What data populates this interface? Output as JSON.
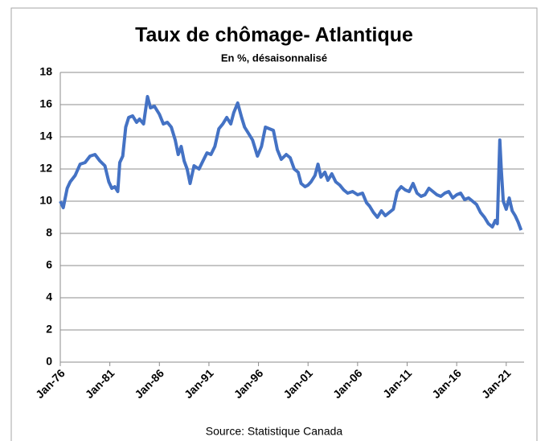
{
  "chart_data": {
    "type": "line",
    "title": "Taux de chômage- Atlantique",
    "subtitle": "En %, désaisonnalisé",
    "source": "Source: Statistique Canada",
    "color": "#4472c4",
    "grid": true,
    "xlim": [
      1976,
      2022.8
    ],
    "xticks": [
      {
        "value": 1976,
        "label": "Jan-76"
      },
      {
        "value": 1981,
        "label": "Jan-81"
      },
      {
        "value": 1986,
        "label": "Jan-86"
      },
      {
        "value": 1991,
        "label": "Jan-91"
      },
      {
        "value": 1996,
        "label": "Jan-96"
      },
      {
        "value": 2001,
        "label": "Jan-01"
      },
      {
        "value": 2006,
        "label": "Jan-06"
      },
      {
        "value": 2011,
        "label": "Jan-11"
      },
      {
        "value": 2016,
        "label": "Jan-16"
      },
      {
        "value": 2021,
        "label": "Jan-21"
      }
    ],
    "ylim": [
      0,
      18
    ],
    "yticks": [
      0,
      2,
      4,
      6,
      8,
      10,
      12,
      14,
      16,
      18
    ],
    "x": [
      1976.0,
      1976.3,
      1976.7,
      1977.0,
      1977.5,
      1978.0,
      1978.5,
      1979.0,
      1979.5,
      1980.0,
      1980.5,
      1980.9,
      1981.2,
      1981.5,
      1981.8,
      1982.0,
      1982.3,
      1982.6,
      1982.9,
      1983.3,
      1983.7,
      1984.0,
      1984.4,
      1984.8,
      1985.1,
      1985.5,
      1986.0,
      1986.4,
      1986.8,
      1987.2,
      1987.6,
      1987.9,
      1988.2,
      1988.5,
      1988.8,
      1989.1,
      1989.5,
      1990.0,
      1990.4,
      1990.8,
      1991.2,
      1991.6,
      1992.0,
      1992.4,
      1992.8,
      1993.2,
      1993.5,
      1993.9,
      1994.3,
      1994.6,
      1995.0,
      1995.4,
      1995.9,
      1996.3,
      1996.7,
      1997.1,
      1997.5,
      1997.9,
      1998.3,
      1998.8,
      1999.2,
      1999.6,
      2000.0,
      2000.3,
      2000.7,
      2001.0,
      2001.3,
      2001.7,
      2002.0,
      2002.3,
      2002.7,
      2003.0,
      2003.4,
      2003.8,
      2004.2,
      2004.6,
      2005.0,
      2005.5,
      2006.0,
      2006.5,
      2006.9,
      2007.2,
      2007.6,
      2008.0,
      2008.4,
      2008.8,
      2009.2,
      2009.6,
      2010.0,
      2010.4,
      2010.8,
      2011.2,
      2011.6,
      2012.0,
      2012.4,
      2012.8,
      2013.2,
      2013.6,
      2014.0,
      2014.4,
      2014.8,
      2015.2,
      2015.6,
      2016.0,
      2016.4,
      2016.8,
      2017.2,
      2017.6,
      2018.0,
      2018.4,
      2018.8,
      2019.2,
      2019.6,
      2019.9,
      2020.1,
      2020.35,
      2020.5,
      2020.7,
      2021.0,
      2021.3,
      2021.6,
      2021.9,
      2022.2,
      2022.5
    ],
    "values": [
      10.0,
      9.6,
      10.8,
      11.2,
      11.6,
      12.3,
      12.4,
      12.8,
      12.9,
      12.5,
      12.2,
      11.2,
      10.8,
      10.9,
      10.6,
      12.4,
      12.8,
      14.6,
      15.2,
      15.3,
      14.9,
      15.1,
      14.8,
      16.5,
      15.8,
      15.9,
      15.4,
      14.8,
      14.9,
      14.6,
      13.8,
      12.9,
      13.4,
      12.5,
      12.0,
      11.1,
      12.2,
      12.0,
      12.5,
      13.0,
      12.9,
      13.4,
      14.5,
      14.8,
      15.2,
      14.8,
      15.5,
      16.1,
      15.2,
      14.6,
      14.2,
      13.8,
      12.8,
      13.4,
      14.6,
      14.5,
      14.4,
      13.2,
      12.6,
      12.9,
      12.7,
      12.0,
      11.8,
      11.1,
      10.9,
      11.0,
      11.2,
      11.6,
      12.3,
      11.5,
      11.8,
      11.3,
      11.7,
      11.2,
      11.0,
      10.7,
      10.5,
      10.6,
      10.4,
      10.5,
      9.9,
      9.7,
      9.3,
      9.0,
      9.4,
      9.1,
      9.3,
      9.5,
      10.6,
      10.9,
      10.7,
      10.6,
      11.1,
      10.5,
      10.3,
      10.4,
      10.8,
      10.6,
      10.4,
      10.3,
      10.5,
      10.6,
      10.2,
      10.4,
      10.5,
      10.1,
      10.2,
      10.0,
      9.8,
      9.3,
      9.0,
      8.6,
      8.4,
      8.8,
      8.6,
      13.8,
      12.0,
      10.0,
      9.5,
      10.2,
      9.4,
      9.1,
      8.7,
      8.2
    ]
  }
}
